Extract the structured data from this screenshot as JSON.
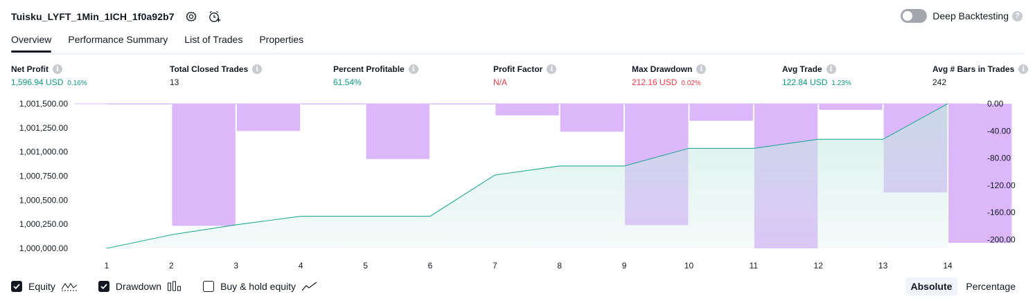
{
  "header": {
    "title": "Tuisku_LYFT_1Min_1ICH_1f0a92b7"
  },
  "deep_backtesting": {
    "label": "Deep Backtesting",
    "enabled": false
  },
  "tabs": [
    {
      "label": "Overview",
      "active": true
    },
    {
      "label": "Performance Summary",
      "active": false
    },
    {
      "label": "List of Trades",
      "active": false
    },
    {
      "label": "Properties",
      "active": false
    }
  ],
  "metrics": {
    "net_profit": {
      "label": "Net Profit",
      "value": "1,596.94 USD",
      "sub": "0.16%"
    },
    "total_closed_trades": {
      "label": "Total Closed Trades",
      "value": "13"
    },
    "percent_profitable": {
      "label": "Percent Profitable",
      "value": "61.54%"
    },
    "profit_factor": {
      "label": "Profit Factor",
      "value": "N/A"
    },
    "max_drawdown": {
      "label": "Max Drawdown",
      "value": "212.16 USD",
      "sub": "0.02%"
    },
    "avg_trade": {
      "label": "Avg Trade",
      "value": "122.84 USD",
      "sub": "1.23%"
    },
    "avg_bars": {
      "label": "Avg # Bars in Trades",
      "value": "242"
    }
  },
  "chart_data": {
    "type": "line",
    "x": [
      1,
      2,
      3,
      4,
      5,
      6,
      7,
      8,
      9,
      10,
      11,
      12,
      13,
      14
    ],
    "series": [
      {
        "name": "Equity",
        "type": "area",
        "axis": "left",
        "values": [
          1000000,
          1000150,
          1000260,
          1000355,
          1000355,
          1000355,
          1000810,
          1000910,
          1000910,
          1001105,
          1001105,
          1001205,
          1001205,
          1001597
        ]
      },
      {
        "name": "Drawdown",
        "type": "bar",
        "axis": "right",
        "values": [
          -1,
          -179,
          -40,
          -1,
          -81,
          -1,
          -17,
          -41,
          -178,
          -25,
          -212,
          -9,
          -130,
          -204
        ]
      }
    ],
    "left_axis": {
      "ticks": [
        "1,001,500.00",
        "1,001,250.00",
        "1,001,000.00",
        "1,000,750.00",
        "1,000,500.00",
        "1,000,250.00",
        "1,000,000.00"
      ],
      "range": [
        1000000,
        1001597
      ]
    },
    "right_axis": {
      "ticks": [
        "0.00",
        "-40.00",
        "-80.00",
        "-120.00",
        "-160.00",
        "-200.00"
      ],
      "range": [
        -212,
        0
      ]
    },
    "colors": {
      "equity_line": "#22ab94",
      "equity_fill": "#d5efe9",
      "drawdown": "#dcb8fb"
    }
  },
  "legend": {
    "items": [
      {
        "label": "Equity",
        "checked": true,
        "icon": "equity-wave-icon"
      },
      {
        "label": "Drawdown",
        "checked": true,
        "icon": "drawdown-bars-icon"
      },
      {
        "label": "Buy & hold equity",
        "checked": false,
        "icon": "buy-hold-line-icon"
      }
    ]
  },
  "modes": [
    {
      "label": "Absolute",
      "active": true
    },
    {
      "label": "Percentage",
      "active": false
    }
  ]
}
